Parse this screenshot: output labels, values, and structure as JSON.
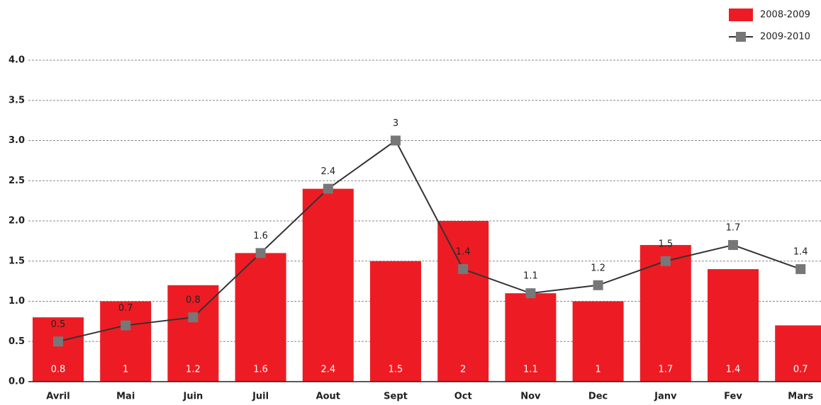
{
  "chart_data": {
    "type": "bar",
    "categories": [
      "Avril",
      "Mai",
      "Juin",
      "Juil",
      "Aout",
      "Sept",
      "Oct",
      "Nov",
      "Dec",
      "Janv",
      "Fev",
      "Mars"
    ],
    "series": [
      {
        "name": "2008-2009",
        "type": "bar",
        "color": "#ed1c24",
        "values": [
          0.8,
          1.0,
          1.2,
          1.6,
          2.4,
          1.5,
          2.0,
          1.1,
          1.0,
          1.7,
          1.4,
          0.7
        ]
      },
      {
        "name": "2009-2010",
        "type": "line",
        "color": "#333333",
        "marker_color": "#777777",
        "values": [
          0.5,
          0.7,
          0.8,
          1.6,
          2.4,
          3.0,
          1.4,
          1.1,
          1.2,
          1.5,
          1.7,
          1.4
        ]
      }
    ],
    "ylim": [
      0,
      4.0
    ],
    "yticks": [
      {
        "value": 0,
        "label": "0.0"
      },
      0.5,
      {
        "value": 1,
        "label": "1.0"
      },
      1.5,
      {
        "value": 2,
        "label": "2.0"
      },
      2.5,
      {
        "value": 3,
        "label": "3.0"
      },
      3.5,
      {
        "value": 4,
        "label": "4.0"
      }
    ],
    "grid": true,
    "legend": "top-right"
  }
}
